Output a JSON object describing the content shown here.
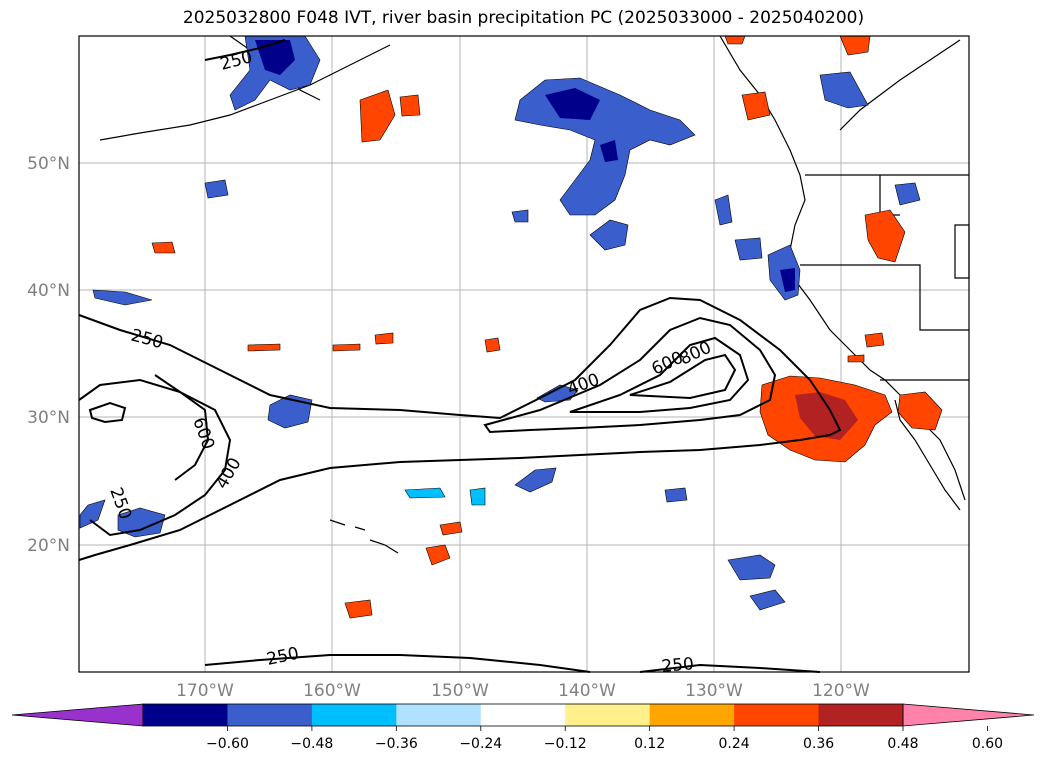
{
  "title": "2025032800 F048 IVT, river basin precipitation PC (2025033000 - 2025040200)",
  "lat_ticks": [
    "50°N",
    "40°N",
    "30°N",
    "20°N"
  ],
  "lon_ticks": [
    "170°W",
    "160°W",
    "150°W",
    "140°W",
    "130°W",
    "120°W"
  ],
  "contour_labels": [
    "250",
    "250",
    "600",
    "400",
    "250",
    "400",
    "600",
    "800",
    "250",
    "250"
  ],
  "colorbar": {
    "colors": [
      "#9932cc",
      "#00008b",
      "#3a5fcd",
      "#00bfff",
      "#b0e2ff",
      "#ffffff",
      "#fff08c",
      "#ffa500",
      "#ff4500",
      "#b22222",
      "#ff82ab"
    ],
    "ticks": [
      "−0.60",
      "−0.48",
      "−0.36",
      "−0.24",
      "−0.12",
      "0.12",
      "0.24",
      "0.36",
      "0.48",
      "0.60"
    ]
  }
}
